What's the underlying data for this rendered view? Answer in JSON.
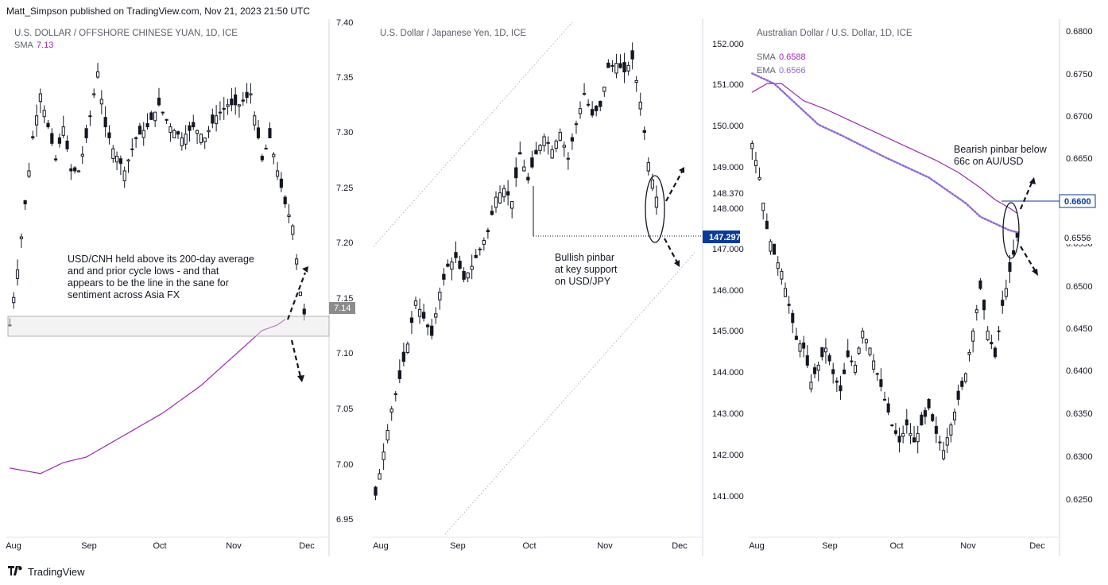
{
  "header": {
    "published": "Matt_Simpson published on TradingView.com, Nov 21, 2023 21:50 UTC"
  },
  "footer": {
    "brand": "TradingView",
    "logo": "tradingview-logo"
  },
  "colors": {
    "sma": "#9c27b0",
    "ema": "#8e6bd6",
    "candle": "#131722",
    "price_tag": "#0d3a99",
    "zone": "#e4e4e4"
  },
  "chart_data": [
    {
      "type": "candlestick",
      "title": "U.S. DOLLAR / OFFSHORE CHINESE YUAN, 1D, ICE",
      "legend": [
        {
          "label": "SMA",
          "value": "7.13"
        }
      ],
      "x_ticks": [
        "Aug",
        "Sep",
        "Oct",
        "Nov",
        "Dec"
      ],
      "y_ticks": [
        "7.40",
        "7.35",
        "7.30",
        "7.25",
        "7.20",
        "7.15",
        "7.10",
        "7.05",
        "7.00",
        "6.95"
      ],
      "ylim": [
        6.94,
        7.405
      ],
      "price_tag": "7.14",
      "annotation": "USD/CNH held above its 200-day average and and prior cycle lows - and that appears to be the line in the sane for sentiment across Asia FX",
      "close_path": [
        [
          0,
          7.13
        ],
        [
          2,
          7.18
        ],
        [
          4,
          7.24
        ],
        [
          6,
          7.3
        ],
        [
          8,
          7.34
        ],
        [
          10,
          7.31
        ],
        [
          12,
          7.28
        ],
        [
          14,
          7.31
        ],
        [
          16,
          7.27
        ],
        [
          18,
          7.27
        ],
        [
          20,
          7.3
        ],
        [
          23,
          7.36
        ],
        [
          25,
          7.31
        ],
        [
          27,
          7.29
        ],
        [
          30,
          7.27
        ],
        [
          33,
          7.3
        ],
        [
          36,
          7.31
        ],
        [
          39,
          7.33
        ],
        [
          42,
          7.31
        ],
        [
          45,
          7.3
        ],
        [
          48,
          7.31
        ],
        [
          51,
          7.3
        ],
        [
          54,
          7.32
        ],
        [
          57,
          7.33
        ],
        [
          60,
          7.33
        ],
        [
          63,
          7.34
        ],
        [
          66,
          7.28
        ],
        [
          68,
          7.3
        ],
        [
          70,
          7.27
        ],
        [
          72,
          7.24
        ],
        [
          74,
          7.22
        ],
        [
          76,
          7.16
        ],
        [
          77,
          7.14
        ]
      ],
      "sma_path": [
        [
          0,
          7.0
        ],
        [
          8,
          6.995
        ],
        [
          14,
          7.005
        ],
        [
          20,
          7.01
        ],
        [
          30,
          7.03
        ],
        [
          40,
          7.05
        ],
        [
          50,
          7.075
        ],
        [
          58,
          7.1
        ],
        [
          66,
          7.125
        ],
        [
          70,
          7.13
        ],
        [
          72,
          7.135
        ]
      ],
      "x_month_index": {
        "Aug": 0,
        "Sep": 22,
        "Oct": 41,
        "Nov": 62,
        "Dec": 82
      }
    },
    {
      "type": "candlestick",
      "title": "U.S. Dollar / Japanese Yen, 1D, ICE",
      "legend": [],
      "x_ticks": [
        "Aug",
        "Sep",
        "Oct",
        "Nov",
        "Dec"
      ],
      "y_ticks": [
        "152.000",
        "151.000",
        "150.000",
        "149.000",
        "148.000",
        "147.000",
        "146.000",
        "145.000",
        "144.000",
        "143.000",
        "142.000",
        "141.000"
      ],
      "ylim": [
        140.6,
        152.45
      ],
      "price_tags": [
        {
          "label": "148.370",
          "style": "plain"
        },
        {
          "label": "147.297",
          "style": "filled"
        }
      ],
      "annotation": "Bullish pinbar at key support on USD/JPY",
      "close_path": [
        [
          0,
          141.5
        ],
        [
          2,
          142.5
        ],
        [
          4,
          143.5
        ],
        [
          6,
          144.2
        ],
        [
          8,
          145.0
        ],
        [
          10,
          146.0
        ],
        [
          12,
          145.6
        ],
        [
          14,
          145.2
        ],
        [
          16,
          146.2
        ],
        [
          18,
          146.8
        ],
        [
          20,
          147.0
        ],
        [
          22,
          146.5
        ],
        [
          24,
          146.8
        ],
        [
          26,
          147.2
        ],
        [
          28,
          147.6
        ],
        [
          30,
          148.4
        ],
        [
          32,
          148.6
        ],
        [
          34,
          148.3
        ],
        [
          36,
          149.4
        ],
        [
          38,
          148.8
        ],
        [
          40,
          149.4
        ],
        [
          42,
          149.8
        ],
        [
          44,
          149.5
        ],
        [
          46,
          149.9
        ],
        [
          48,
          149.3
        ],
        [
          50,
          150.1
        ],
        [
          52,
          150.8
        ],
        [
          54,
          150.3
        ],
        [
          56,
          150.5
        ],
        [
          58,
          151.4
        ],
        [
          60,
          151.5
        ],
        [
          62,
          151.3
        ],
        [
          64,
          151.6
        ],
        [
          66,
          150.6
        ],
        [
          68,
          149.2
        ],
        [
          70,
          148.4
        ]
      ],
      "x_month_index": {
        "Aug": 0,
        "Sep": 22,
        "Oct": 42,
        "Nov": 62,
        "Dec": 82
      }
    },
    {
      "type": "candlestick",
      "title": "Australian Dollar / U.S. Dollar, 1D, ICE",
      "legend": [
        {
          "label": "SMA",
          "value": "0.6588"
        },
        {
          "label": "EMA",
          "value": "0.6566"
        }
      ],
      "x_ticks": [
        "Aug",
        "Sep",
        "Oct",
        "Nov",
        "Dec"
      ],
      "y_ticks": [
        "0.6800",
        "0.6750",
        "0.6700",
        "0.6650",
        "0.6600",
        "0.6550",
        "0.6500",
        "0.6450",
        "0.6400",
        "0.6350",
        "0.6300",
        "0.6250"
      ],
      "ylim": [
        0.6212,
        0.6812
      ],
      "price_tags": [
        {
          "label": "0.6600",
          "style": "line"
        },
        {
          "label": "0.6556",
          "style": "plain"
        }
      ],
      "annotation": "Bearish pinbar below 66c on AU/USD",
      "close_path": [
        [
          0,
          0.667
        ],
        [
          2,
          0.663
        ],
        [
          4,
          0.657
        ],
        [
          6,
          0.654
        ],
        [
          8,
          0.652
        ],
        [
          10,
          0.648
        ],
        [
          12,
          0.644
        ],
        [
          14,
          0.643
        ],
        [
          16,
          0.639
        ],
        [
          18,
          0.641
        ],
        [
          20,
          0.643
        ],
        [
          22,
          0.64
        ],
        [
          24,
          0.638
        ],
        [
          26,
          0.642
        ],
        [
          28,
          0.641
        ],
        [
          30,
          0.645
        ],
        [
          32,
          0.643
        ],
        [
          34,
          0.64
        ],
        [
          36,
          0.637
        ],
        [
          38,
          0.634
        ],
        [
          40,
          0.632
        ],
        [
          42,
          0.634
        ],
        [
          44,
          0.632
        ],
        [
          46,
          0.634
        ],
        [
          48,
          0.636
        ],
        [
          50,
          0.633
        ],
        [
          52,
          0.631
        ],
        [
          54,
          0.634
        ],
        [
          56,
          0.637
        ],
        [
          58,
          0.64
        ],
        [
          60,
          0.645
        ],
        [
          62,
          0.65
        ],
        [
          64,
          0.645
        ],
        [
          66,
          0.642
        ],
        [
          68,
          0.648
        ],
        [
          70,
          0.652
        ],
        [
          72,
          0.656
        ]
      ],
      "sma_path": [
        [
          0,
          0.673
        ],
        [
          4,
          0.674
        ],
        [
          8,
          0.674
        ],
        [
          14,
          0.672
        ],
        [
          20,
          0.671
        ],
        [
          26,
          0.6698
        ],
        [
          32,
          0.6686
        ],
        [
          38,
          0.6674
        ],
        [
          44,
          0.6662
        ],
        [
          50,
          0.665
        ],
        [
          56,
          0.6636
        ],
        [
          62,
          0.6618
        ],
        [
          66,
          0.6604
        ],
        [
          70,
          0.6594
        ],
        [
          72,
          0.6588
        ]
      ],
      "ema_path": [
        [
          0,
          0.6752
        ],
        [
          6,
          0.674
        ],
        [
          12,
          0.6716
        ],
        [
          18,
          0.6692
        ],
        [
          24,
          0.668
        ],
        [
          30,
          0.6667
        ],
        [
          36,
          0.6654
        ],
        [
          42,
          0.6642
        ],
        [
          48,
          0.663
        ],
        [
          54,
          0.6612
        ],
        [
          58,
          0.66
        ],
        [
          62,
          0.6584
        ],
        [
          66,
          0.6576
        ],
        [
          70,
          0.6568
        ],
        [
          72,
          0.6566
        ]
      ],
      "x_month_index": {
        "Aug": 0,
        "Sep": 21,
        "Oct": 41,
        "Nov": 62,
        "Dec": 82
      }
    }
  ]
}
